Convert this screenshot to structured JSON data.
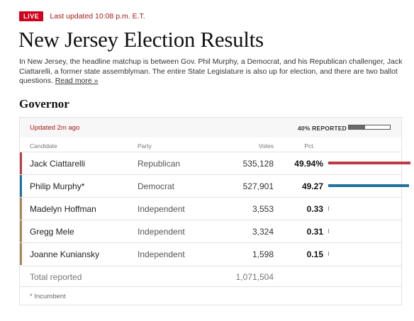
{
  "header": {
    "live_label": "LIVE",
    "updated_text": "Last updated 10:08 p.m. E.T."
  },
  "page_title": "New Jersey Election Results",
  "intro": {
    "text": "In New Jersey, the headline matchup is between Gov. Phil Murphy, a Democrat, and his Republican challenger, Jack Ciattarelli, a former state assemblyman. The entire State Legislature is also up for election, and there are two ballot questions. ",
    "read_more": "Read more »"
  },
  "section_title": "Governor",
  "results": {
    "updated": "Updated 2m ago",
    "reported_label": "40% REPORTED",
    "reported_fraction": 0.4,
    "columns": {
      "candidate": "Candidate",
      "party": "Party",
      "votes": "Votes",
      "pct": "Pct."
    },
    "candidates": [
      {
        "name": "Jack Ciattarelli",
        "party": "Republican",
        "votes": "535,128",
        "pct": "49.94%",
        "pct_value": 49.94,
        "color": "#bf3b44"
      },
      {
        "name": "Philip Murphy*",
        "party": "Democrat",
        "votes": "527,901",
        "pct": "49.27",
        "pct_value": 49.27,
        "color": "#20739e"
      },
      {
        "name": "Madelyn Hoffman",
        "party": "Independent",
        "votes": "3,553",
        "pct": "0.33",
        "pct_value": 0.33,
        "color": "#a9865a"
      },
      {
        "name": "Gregg Mele",
        "party": "Independent",
        "votes": "3,324",
        "pct": "0.31",
        "pct_value": 0.31,
        "color": "#a9865a"
      },
      {
        "name": "Joanne Kuniansky",
        "party": "Independent",
        "votes": "1,598",
        "pct": "0.15",
        "pct_value": 0.15,
        "color": "#a9865a"
      }
    ],
    "total_label": "Total reported",
    "total_votes": "1,071,504",
    "footnote": "* Incumbent"
  }
}
